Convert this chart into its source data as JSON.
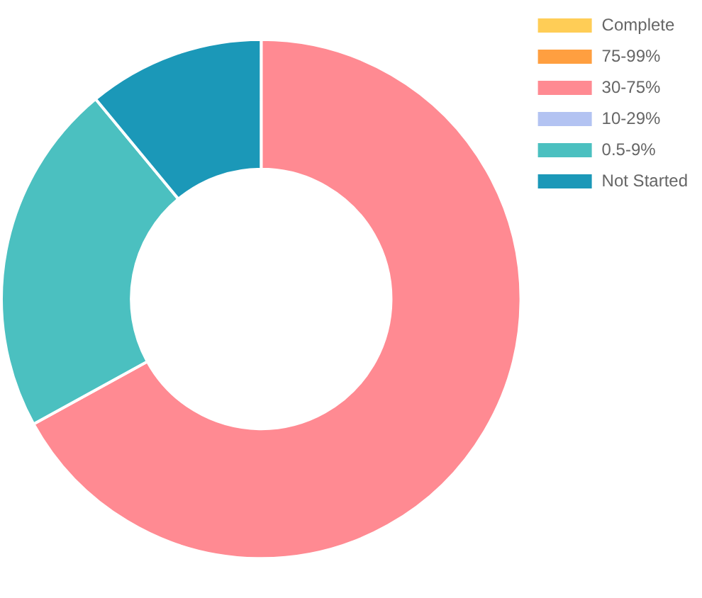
{
  "chart_data": {
    "type": "donut",
    "categories": [
      "Complete",
      "75-99%",
      "30-75%",
      "10-29%",
      "0.5-9%",
      "Not Started"
    ],
    "values": [
      0,
      0,
      67,
      0,
      22,
      11
    ],
    "colors": [
      "#ffcd56",
      "#ff9f40",
      "#ff8a92",
      "#b3c3f2",
      "#4bc0c0",
      "#1b98b8"
    ],
    "legend": "top right"
  }
}
